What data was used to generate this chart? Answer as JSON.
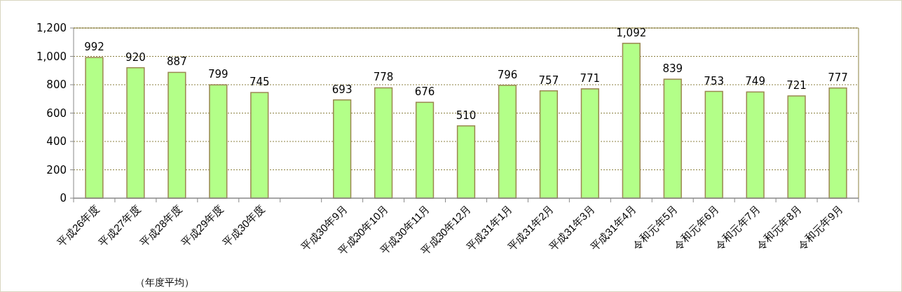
{
  "chart_data": {
    "type": "bar",
    "categories": [
      "平成26年度",
      "平成27年度",
      "平成28年度",
      "平成29年度",
      "平成30年度",
      null,
      "平成30年9月",
      "平成30年10月",
      "平成30年11月",
      "平成30年12月",
      "平成31年1月",
      "平成31年2月",
      "平成31年3月",
      "平成31年4月",
      "令和元年5月",
      "令和元年6月",
      "令和元年7月",
      "令和元年8月",
      "令和元年9月"
    ],
    "values": [
      992,
      920,
      887,
      799,
      745,
      null,
      693,
      778,
      676,
      510,
      796,
      757,
      771,
      1092,
      839,
      753,
      749,
      721,
      777
    ],
    "value_labels": [
      "992",
      "920",
      "887",
      "799",
      "745",
      null,
      "693",
      "778",
      "676",
      "510",
      "796",
      "757",
      "771",
      "1,092",
      "839",
      "753",
      "749",
      "721",
      "777"
    ],
    "color": "#b3ff88",
    "ylim": [
      0,
      1200
    ],
    "yticks": [
      0,
      200,
      400,
      600,
      800,
      {
        "value": 1000,
        "label": "1,000"
      },
      {
        "value": 1200,
        "label": "1,200"
      }
    ],
    "grid": "y",
    "annotations": [
      "（年度平均）"
    ]
  }
}
